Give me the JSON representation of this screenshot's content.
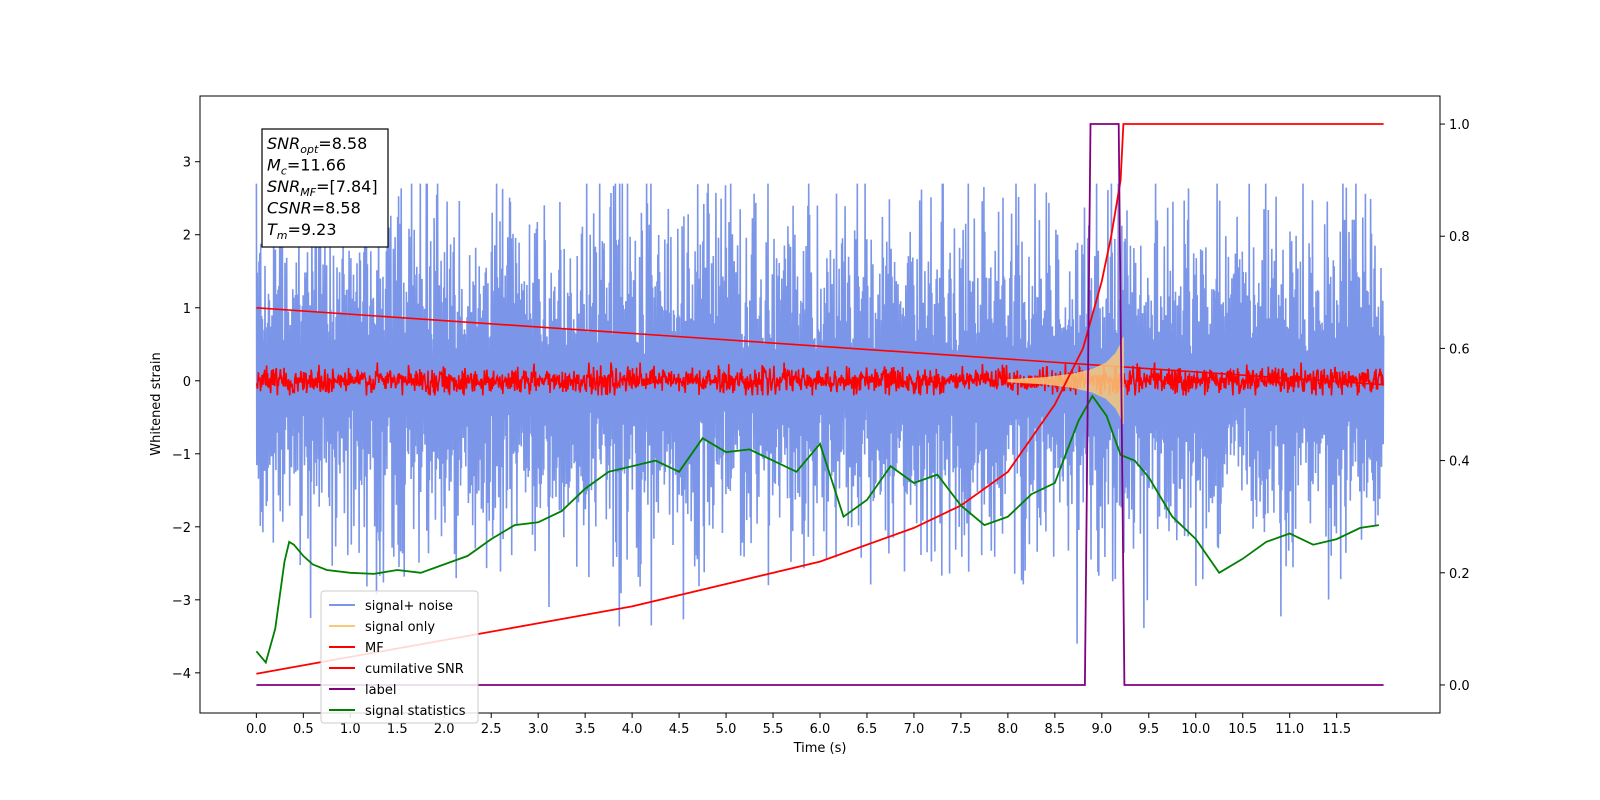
{
  "chart_data": {
    "type": "line",
    "xlabel": "Time (s)",
    "ylabel": "Whitened strain",
    "xlim": [
      -0.6,
      12.6
    ],
    "ylim": [
      -4.55,
      3.9
    ],
    "y2lim": [
      -0.05,
      1.05
    ],
    "x_ticks": [
      0.0,
      0.5,
      1.0,
      1.5,
      2.0,
      2.5,
      3.0,
      3.5,
      4.0,
      4.5,
      5.0,
      5.5,
      6.0,
      6.5,
      7.0,
      7.5,
      8.0,
      8.5,
      9.0,
      9.5,
      10.0,
      10.5,
      11.0,
      11.5
    ],
    "x_tick_labels": [
      "0.0",
      "0.5",
      "1.0",
      "1.5",
      "2.0",
      "2.5",
      "3.0",
      "3.5",
      "4.0",
      "4.5",
      "5.0",
      "5.5",
      "6.0",
      "6.5",
      "7.0",
      "7.5",
      "8.0",
      "8.5",
      "9.0",
      "9.5",
      "10.0",
      "10.5",
      "11.0",
      "11.5"
    ],
    "y_ticks": [
      3,
      2,
      1,
      0,
      -1,
      -2,
      -3,
      -4
    ],
    "y_tick_labels": [
      "3",
      "2",
      "1",
      "0",
      "−1",
      "−2",
      "−3",
      "−4"
    ],
    "y2_ticks": [
      1.0,
      0.8,
      0.6,
      0.4,
      0.2,
      0.0
    ],
    "y2_tick_labels": [
      "1.0",
      "0.8",
      "0.6",
      "0.4",
      "0.2",
      "0.0"
    ],
    "grid": false,
    "legend_position": "lower-left",
    "annotation": {
      "lines": [
        {
          "base": "SNR",
          "sub": "opt",
          "rest": "=8.58"
        },
        {
          "base": "M",
          "sub": "c",
          "rest": "=11.66"
        },
        {
          "base": "SNR",
          "sub": "MF",
          "rest": "=[7.84]"
        },
        {
          "base": "CSNR",
          "sub": "",
          "rest": "=8.58"
        },
        {
          "base": "T",
          "sub": "m",
          "rest": "=9.23"
        }
      ]
    },
    "series": [
      {
        "name": "signal+ noise",
        "color": "#7b96e8",
        "axis": "left",
        "x_range": [
          0,
          12
        ],
        "envelope_upper": 2.2,
        "envelope_lower": -2.4,
        "peak_range": [
          2.7,
          -3.6
        ]
      },
      {
        "name": "signal only",
        "color": "#f7c97b",
        "axis": "left",
        "x": [
          8.0,
          8.4,
          8.7,
          8.9,
          9.05,
          9.15,
          9.2,
          9.23
        ],
        "amplitude": [
          0.02,
          0.05,
          0.1,
          0.16,
          0.25,
          0.38,
          0.5,
          0.6
        ]
      },
      {
        "name": "MF",
        "color": "#ff0000",
        "axis": "left",
        "x_range": [
          0,
          12
        ],
        "envelope_upper": 0.25,
        "envelope_lower": -0.2
      },
      {
        "name": "cumilative SNR",
        "color": "#ff0000",
        "axis": "right",
        "x": [
          0.0,
          1.0,
          2.0,
          3.0,
          4.0,
          5.0,
          6.0,
          7.0,
          7.5,
          8.0,
          8.5,
          8.8,
          9.0,
          9.1,
          9.2,
          9.23,
          9.3,
          12.0
        ],
        "y": [
          0.02,
          0.05,
          0.08,
          0.11,
          0.14,
          0.18,
          0.22,
          0.28,
          0.32,
          0.38,
          0.5,
          0.6,
          0.72,
          0.8,
          0.9,
          1.0,
          1.0,
          1.0
        ]
      },
      {
        "name": "label",
        "color": "#800080",
        "axis": "right",
        "x": [
          0.0,
          8.82,
          8.88,
          9.18,
          9.24,
          12.0
        ],
        "y": [
          0.0,
          0.0,
          1.0,
          1.0,
          0.0,
          0.0
        ]
      },
      {
        "name": "signal statistics",
        "color": "#008000",
        "axis": "right",
        "x": [
          0.0,
          0.1,
          0.2,
          0.3,
          0.35,
          0.4,
          0.5,
          0.6,
          0.75,
          1.0,
          1.25,
          1.5,
          1.75,
          2.0,
          2.25,
          2.5,
          2.75,
          3.0,
          3.25,
          3.5,
          3.75,
          4.0,
          4.25,
          4.5,
          4.75,
          5.0,
          5.25,
          5.5,
          5.75,
          6.0,
          6.25,
          6.5,
          6.75,
          7.0,
          7.25,
          7.5,
          7.75,
          8.0,
          8.25,
          8.5,
          8.75,
          8.9,
          9.05,
          9.2,
          9.35,
          9.5,
          9.75,
          10.0,
          10.25,
          10.5,
          10.75,
          11.0,
          11.25,
          11.5,
          11.75,
          11.95
        ],
        "y": [
          0.06,
          0.04,
          0.1,
          0.22,
          0.255,
          0.25,
          0.23,
          0.215,
          0.205,
          0.2,
          0.198,
          0.205,
          0.2,
          0.215,
          0.23,
          0.26,
          0.285,
          0.29,
          0.31,
          0.35,
          0.38,
          0.39,
          0.4,
          0.38,
          0.44,
          0.415,
          0.42,
          0.4,
          0.38,
          0.43,
          0.3,
          0.33,
          0.39,
          0.36,
          0.375,
          0.32,
          0.285,
          0.3,
          0.34,
          0.36,
          0.47,
          0.515,
          0.48,
          0.41,
          0.4,
          0.37,
          0.3,
          0.26,
          0.2,
          0.225,
          0.255,
          0.27,
          0.25,
          0.26,
          0.28,
          0.285
        ]
      }
    ]
  }
}
